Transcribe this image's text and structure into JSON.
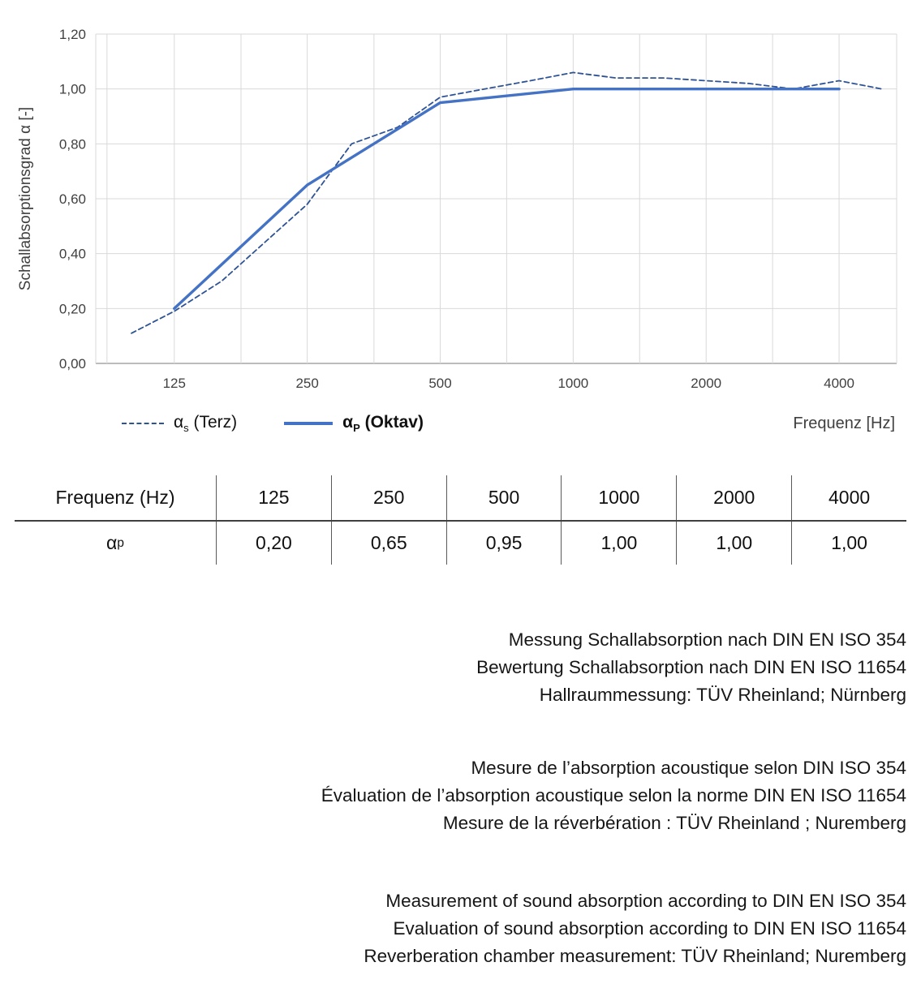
{
  "chart": {
    "y_axis_title": "Schallabsorptionsgrad α [-]",
    "x_axis_title": "Frequenz [Hz]",
    "y_tick_labels": [
      "0,00",
      "0,20",
      "0,40",
      "0,60",
      "0,80",
      "1,00",
      "1,20"
    ],
    "y_tick_values": [
      0,
      0.2,
      0.4,
      0.6,
      0.8,
      1.0,
      1.2
    ],
    "x_tick_labels": [
      "125",
      "250",
      "500",
      "1000",
      "2000",
      "4000"
    ],
    "x_tick_values": [
      125,
      250,
      500,
      1000,
      2000,
      4000
    ]
  },
  "chart_data": {
    "type": "line",
    "title": "",
    "xlabel": "Frequenz [Hz]",
    "ylabel": "Schallabsorptionsgrad α [-]",
    "x_scale": "log",
    "xlim": [
      83,
      5400
    ],
    "ylim": [
      0,
      1.2
    ],
    "grid": true,
    "legend_position": "bottom-left",
    "x_gridlines": [
      88,
      125,
      177,
      250,
      354,
      500,
      707,
      1000,
      1414,
      2000,
      2828,
      4000
    ],
    "y_gridlines": [
      0,
      0.2,
      0.4,
      0.6,
      0.8,
      1.0,
      1.2
    ],
    "series": [
      {
        "name": "αs (Terz)",
        "style": "dashed",
        "color": "#2e5395",
        "x": [
          100,
          125,
          160,
          200,
          250,
          315,
          400,
          500,
          630,
          800,
          1000,
          1250,
          1600,
          2000,
          2500,
          3150,
          4000,
          5000
        ],
        "y": [
          0.11,
          0.19,
          0.3,
          0.44,
          0.58,
          0.8,
          0.86,
          0.97,
          1.0,
          1.03,
          1.06,
          1.04,
          1.04,
          1.03,
          1.02,
          1.0,
          1.03,
          1.0
        ]
      },
      {
        "name": "αp (Oktav)",
        "style": "solid",
        "color": "#4472c4",
        "x": [
          125,
          250,
          500,
          1000,
          2000,
          4000
        ],
        "y": [
          0.2,
          0.65,
          0.95,
          1.0,
          1.0,
          1.0
        ]
      }
    ]
  },
  "legend": {
    "items": [
      {
        "alpha": "α",
        "sub": "s",
        "rest": " (Terz)"
      },
      {
        "alpha": "α",
        "sub": "P",
        "rest": " (Oktav)"
      }
    ]
  },
  "table": {
    "header": [
      "Frequenz (Hz)",
      "125",
      "250",
      "500",
      "1000",
      "2000",
      "4000"
    ],
    "row_label": {
      "alpha": "α",
      "sub": "p"
    },
    "values": [
      "0,20",
      "0,65",
      "0,95",
      "1,00",
      "1,00",
      "1,00"
    ]
  },
  "notes": {
    "de": [
      "Messung Schallabsorption nach DIN EN ISO 354",
      "Bewertung Schallabsorption nach DIN EN ISO 11654",
      "Hallraummessung: TÜV Rheinland; Nürnberg"
    ],
    "fr": [
      "Mesure de l’absorption acoustique selon DIN ISO 354",
      "Évaluation de l’absorption acoustique selon la norme DIN EN ISO 11654",
      "Mesure de la réverbération : TÜV Rheinland ; Nuremberg"
    ],
    "en": [
      "Measurement of sound absorption according to DIN EN ISO 354",
      "Evaluation of sound absorption according to DIN EN ISO 11654",
      "Reverberation chamber measurement: TÜV Rheinland; Nuremberg"
    ]
  },
  "colors": {
    "series_dashed": "#2e5395",
    "series_solid": "#4472c4",
    "gridline": "#d9d9d9",
    "axis_text": "#404040",
    "table_line": "#595959",
    "text": "#161616"
  }
}
